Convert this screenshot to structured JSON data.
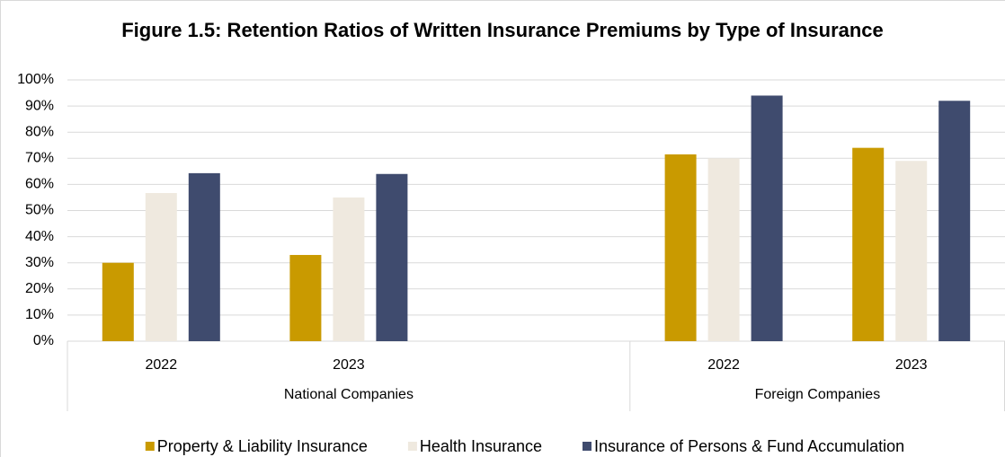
{
  "chart_data": {
    "type": "bar",
    "title": "Figure 1.5: Retention Ratios of Written Insurance Premiums by Type of Insurance",
    "groups": [
      {
        "name": "National Companies",
        "categories": [
          "2022",
          "2023",
          null
        ]
      },
      {
        "name": "Foreign Companies",
        "categories": [
          "2022",
          "2023"
        ]
      }
    ],
    "series": [
      {
        "name": "Property & Liability Insurance",
        "color": "#c99a00",
        "values": [
          30,
          33,
          null,
          71.5,
          74
        ]
      },
      {
        "name": "Health Insurance",
        "color": "#efe9df",
        "values": [
          56.7,
          55,
          null,
          70,
          69
        ]
      },
      {
        "name": "Insurance of Persons & Fund Accumulation",
        "color": "#3f4b6e",
        "values": [
          64.3,
          64,
          null,
          94,
          92
        ]
      }
    ],
    "ylim": [
      0,
      100
    ],
    "yticks": [
      {
        "value": 0,
        "label": "0%"
      },
      {
        "value": 10,
        "label": "10%"
      },
      {
        "value": 20,
        "label": "20%"
      },
      {
        "value": 30,
        "label": "30%"
      },
      {
        "value": 40,
        "label": "40%"
      },
      {
        "value": 50,
        "label": "50%"
      },
      {
        "value": 60,
        "label": "60%"
      },
      {
        "value": 70,
        "label": "70%"
      },
      {
        "value": 80,
        "label": "80%"
      },
      {
        "value": 90,
        "label": "90%"
      },
      {
        "value": 100,
        "label": "100%"
      }
    ],
    "grid": true,
    "legend": "bottom"
  }
}
